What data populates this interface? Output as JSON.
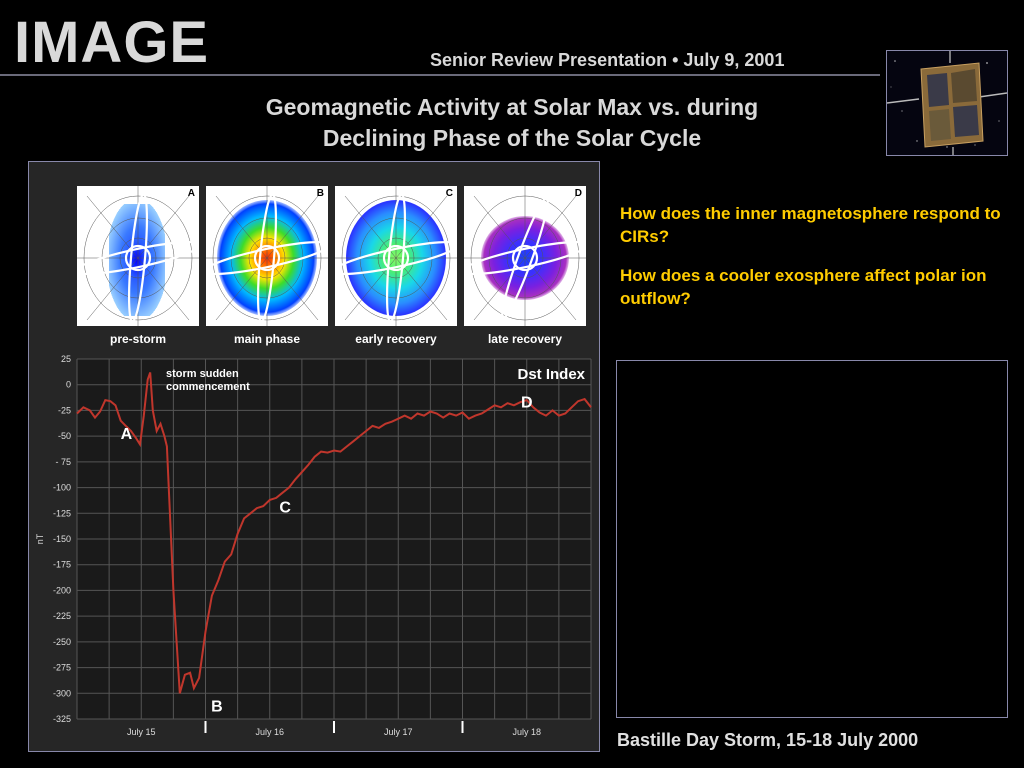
{
  "header": {
    "logo": "IMAGE",
    "subtitle": "Senior Review Presentation • July 9, 2001",
    "title_line1": "Geomagnetic Activity at Solar Max vs. during",
    "title_line2": "Declining Phase of the Solar Cycle"
  },
  "thumbnails": [
    {
      "letter": "A",
      "caption": "pre-storm"
    },
    {
      "letter": "B",
      "caption": "main phase"
    },
    {
      "letter": "C",
      "caption": "early recovery"
    },
    {
      "letter": "D",
      "caption": "late recovery"
    }
  ],
  "questions": [
    "How does the inner magnetosphere respond to CIRs?",
    "How does a cooler exosphere affect polar ion outflow?"
  ],
  "movie_caption": "Bastille Day Storm, 15-18 July 2000",
  "colors": {
    "accent_yellow": "#ffcc00",
    "series_red": "#c0362c",
    "panel_bg": "#262626",
    "frame": "#8888aa"
  },
  "chart_data": {
    "type": "line",
    "title": "Dst Index",
    "ylabel": "nT",
    "xlabel": "",
    "ylim": [
      -325,
      25
    ],
    "yticks": [
      25,
      0,
      -25,
      -50,
      -75,
      -100,
      -125,
      -150,
      -175,
      -200,
      -225,
      -250,
      -275,
      -300,
      -325
    ],
    "ytick_labels": [
      "25",
      "0",
      "-25",
      "-50",
      "- 75",
      "-100",
      "-125",
      "-150",
      "-175",
      "-200",
      "-225",
      "-250",
      "-275",
      "-300",
      "-325"
    ],
    "xlim_days": [
      0,
      4
    ],
    "xtick_labels": [
      {
        "day": 0.5,
        "label": "July 15"
      },
      {
        "day": 1.5,
        "label": "July 16"
      },
      {
        "day": 2.5,
        "label": "July 17"
      },
      {
        "day": 3.5,
        "label": "July 18"
      }
    ],
    "grid": true,
    "annotation": "storm sudden commencement",
    "markers": [
      {
        "label": "A",
        "day": 0.4,
        "value": -38
      },
      {
        "label": "B",
        "day": 1.05,
        "value": -300
      },
      {
        "label": "C",
        "day": 1.62,
        "value": -130
      },
      {
        "label": "D",
        "day": 3.5,
        "value": -28
      }
    ],
    "series": [
      {
        "values": [
          [
            0.0,
            -28
          ],
          [
            0.05,
            -22
          ],
          [
            0.1,
            -25
          ],
          [
            0.14,
            -32
          ],
          [
            0.18,
            -26
          ],
          [
            0.22,
            -15
          ],
          [
            0.26,
            -16
          ],
          [
            0.3,
            -20
          ],
          [
            0.34,
            -35
          ],
          [
            0.38,
            -40
          ],
          [
            0.42,
            -45
          ],
          [
            0.46,
            -52
          ],
          [
            0.49,
            -58
          ],
          [
            0.52,
            -30
          ],
          [
            0.55,
            5
          ],
          [
            0.57,
            12
          ],
          [
            0.59,
            -25
          ],
          [
            0.62,
            -45
          ],
          [
            0.65,
            -38
          ],
          [
            0.68,
            -50
          ],
          [
            0.7,
            -60
          ],
          [
            0.75,
            -200
          ],
          [
            0.8,
            -300
          ],
          [
            0.84,
            -282
          ],
          [
            0.88,
            -280
          ],
          [
            0.91,
            -295
          ],
          [
            0.95,
            -285
          ],
          [
            1.0,
            -240
          ],
          [
            1.05,
            -205
          ],
          [
            1.1,
            -190
          ],
          [
            1.15,
            -172
          ],
          [
            1.2,
            -165
          ],
          [
            1.25,
            -145
          ],
          [
            1.3,
            -130
          ],
          [
            1.35,
            -125
          ],
          [
            1.4,
            -120
          ],
          [
            1.45,
            -118
          ],
          [
            1.5,
            -112
          ],
          [
            1.55,
            -110
          ],
          [
            1.6,
            -105
          ],
          [
            1.65,
            -100
          ],
          [
            1.7,
            -92
          ],
          [
            1.75,
            -85
          ],
          [
            1.8,
            -78
          ],
          [
            1.85,
            -70
          ],
          [
            1.9,
            -65
          ],
          [
            1.95,
            -66
          ],
          [
            2.0,
            -64
          ],
          [
            2.05,
            -65
          ],
          [
            2.1,
            -60
          ],
          [
            2.15,
            -55
          ],
          [
            2.2,
            -50
          ],
          [
            2.25,
            -45
          ],
          [
            2.3,
            -40
          ],
          [
            2.35,
            -42
          ],
          [
            2.4,
            -38
          ],
          [
            2.45,
            -36
          ],
          [
            2.5,
            -33
          ],
          [
            2.55,
            -30
          ],
          [
            2.6,
            -33
          ],
          [
            2.65,
            -28
          ],
          [
            2.7,
            -30
          ],
          [
            2.75,
            -26
          ],
          [
            2.8,
            -28
          ],
          [
            2.85,
            -32
          ],
          [
            2.9,
            -28
          ],
          [
            2.95,
            -30
          ],
          [
            3.0,
            -27
          ],
          [
            3.05,
            -33
          ],
          [
            3.1,
            -30
          ],
          [
            3.15,
            -28
          ],
          [
            3.2,
            -24
          ],
          [
            3.25,
            -20
          ],
          [
            3.3,
            -22
          ],
          [
            3.35,
            -18
          ],
          [
            3.4,
            -20
          ],
          [
            3.45,
            -17
          ],
          [
            3.5,
            -15
          ],
          [
            3.55,
            -22
          ],
          [
            3.6,
            -27
          ],
          [
            3.65,
            -30
          ],
          [
            3.7,
            -25
          ],
          [
            3.75,
            -30
          ],
          [
            3.8,
            -28
          ],
          [
            3.85,
            -22
          ],
          [
            3.9,
            -16
          ],
          [
            3.95,
            -14
          ],
          [
            4.0,
            -22
          ]
        ]
      }
    ]
  }
}
